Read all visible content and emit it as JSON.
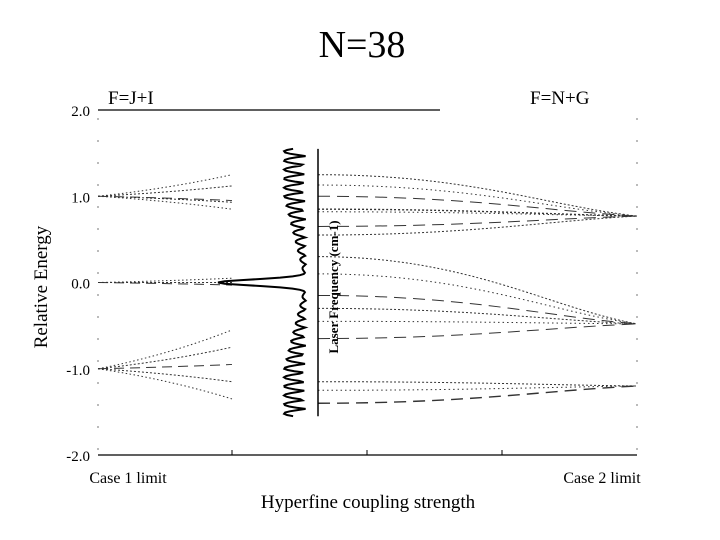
{
  "chart_data": {
    "type": "line",
    "title": "N=38",
    "ylabel": "Relative Energy",
    "xlabel": "Hyperfine coupling strength",
    "left_annotation": "F=J+I",
    "right_annotation": "F=N+G",
    "x_tick_labels": [
      "Case 1 limit",
      "Case 2 limit"
    ],
    "y_tick_labels": [
      "2.0",
      "1.0",
      "0.0",
      "-1.0",
      "-2.0"
    ],
    "ylim": [
      -2.0,
      2.0
    ],
    "xlim": [
      0,
      1
    ],
    "grid": false,
    "inset": {
      "type": "spectrum",
      "label": "Laser Frequency (cm-1)",
      "y_range": [
        -1.55,
        1.55
      ]
    }
  }
}
